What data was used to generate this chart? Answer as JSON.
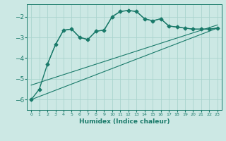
{
  "xlabel": "Humidex (Indice chaleur)",
  "bg_color": "#cce8e4",
  "grid_color": "#aad4ce",
  "line_color": "#1a7a6a",
  "xlim": [
    -0.5,
    23.5
  ],
  "ylim": [
    -6.5,
    -1.4
  ],
  "yticks": [
    -6,
    -5,
    -4,
    -3,
    -2
  ],
  "xticks": [
    0,
    1,
    2,
    3,
    4,
    5,
    6,
    7,
    8,
    9,
    10,
    11,
    12,
    13,
    14,
    15,
    16,
    17,
    18,
    19,
    20,
    21,
    22,
    23
  ],
  "series": [
    {
      "x": [
        0,
        1,
        2,
        3,
        4,
        5,
        6,
        7,
        8,
        9,
        10,
        11,
        12,
        13,
        14,
        15,
        16,
        17,
        18,
        19,
        20,
        21,
        22,
        23
      ],
      "y": [
        -6.0,
        -5.5,
        -4.3,
        -3.35,
        -2.65,
        -2.6,
        -3.0,
        -3.1,
        -2.7,
        -2.65,
        -2.0,
        -1.75,
        -1.7,
        -1.75,
        -2.1,
        -2.2,
        -2.1,
        -2.45,
        -2.5,
        -2.55,
        -2.6,
        -2.6,
        -2.6,
        -2.55
      ],
      "marker": "D",
      "linewidth": 1.0,
      "markersize": 2.5
    },
    {
      "x": [
        2,
        3,
        4,
        5,
        6,
        7,
        8,
        9,
        10,
        11,
        12,
        13,
        14,
        15,
        16,
        17,
        18,
        19,
        20,
        21,
        22,
        23
      ],
      "y": [
        -4.3,
        -3.35,
        -2.65,
        -2.6,
        -3.0,
        -3.1,
        -2.7,
        -2.65,
        -2.0,
        -1.75,
        -1.7,
        -1.75,
        -2.1,
        -2.2,
        -2.1,
        -2.45,
        -2.5,
        -2.55,
        -2.6,
        -2.6,
        -2.6,
        -2.55
      ],
      "marker": null,
      "linewidth": 0.8,
      "markersize": 0
    },
    {
      "x": [
        0,
        23
      ],
      "y": [
        -6.0,
        -2.55
      ],
      "marker": null,
      "linewidth": 0.8,
      "markersize": 0
    },
    {
      "x": [
        0,
        23
      ],
      "y": [
        -5.3,
        -2.4
      ],
      "marker": null,
      "linewidth": 0.8,
      "markersize": 0
    }
  ]
}
